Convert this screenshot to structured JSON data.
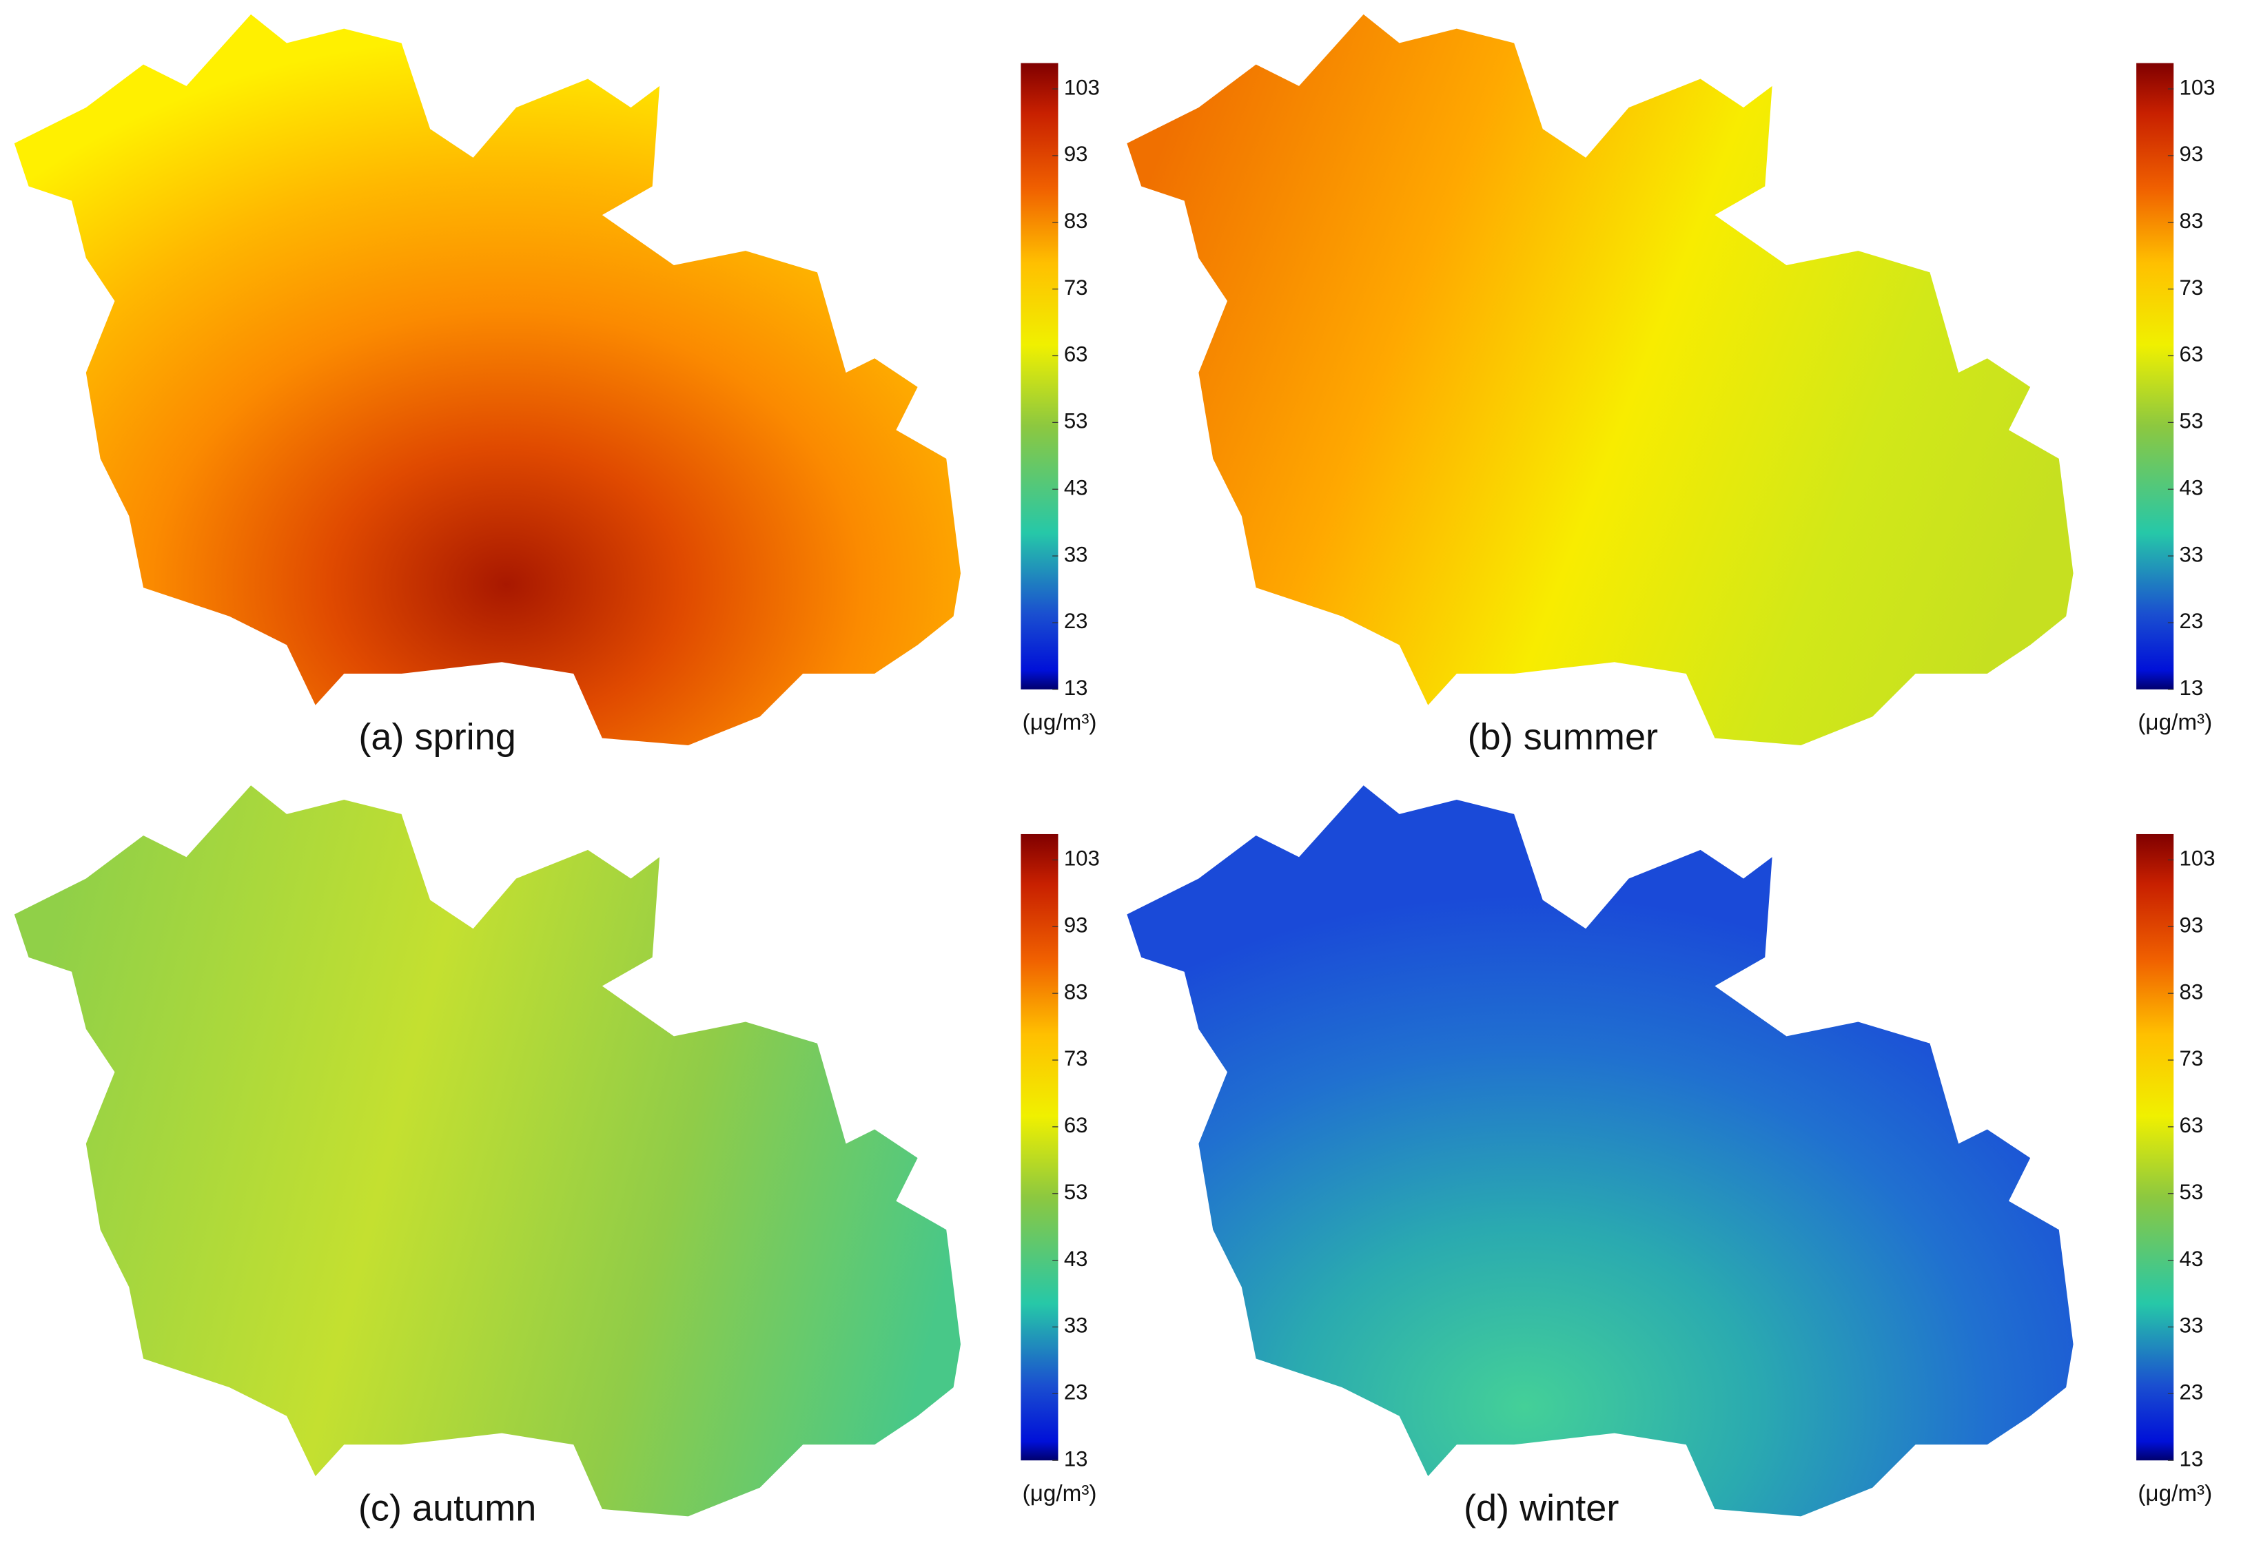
{
  "panels": [
    {
      "caption": "(a) spring",
      "unit": "(μg/m³)",
      "ticks": [
        13,
        23,
        33,
        43,
        53,
        63,
        73,
        83,
        93,
        103
      ]
    },
    {
      "caption": "(b) summer",
      "unit": "(μg/m³)",
      "ticks": [
        13,
        23,
        33,
        43,
        53,
        63,
        73,
        83,
        93,
        103
      ]
    },
    {
      "caption": "(c) autumn",
      "unit": "(μg/m³)",
      "ticks": [
        13,
        23,
        33,
        43,
        53,
        63,
        73,
        83,
        93,
        103
      ]
    },
    {
      "caption": "(d) winter",
      "unit": "(μg/m³)",
      "ticks": [
        13,
        23,
        33,
        43,
        53,
        63,
        73,
        83,
        93,
        103
      ]
    }
  ]
}
